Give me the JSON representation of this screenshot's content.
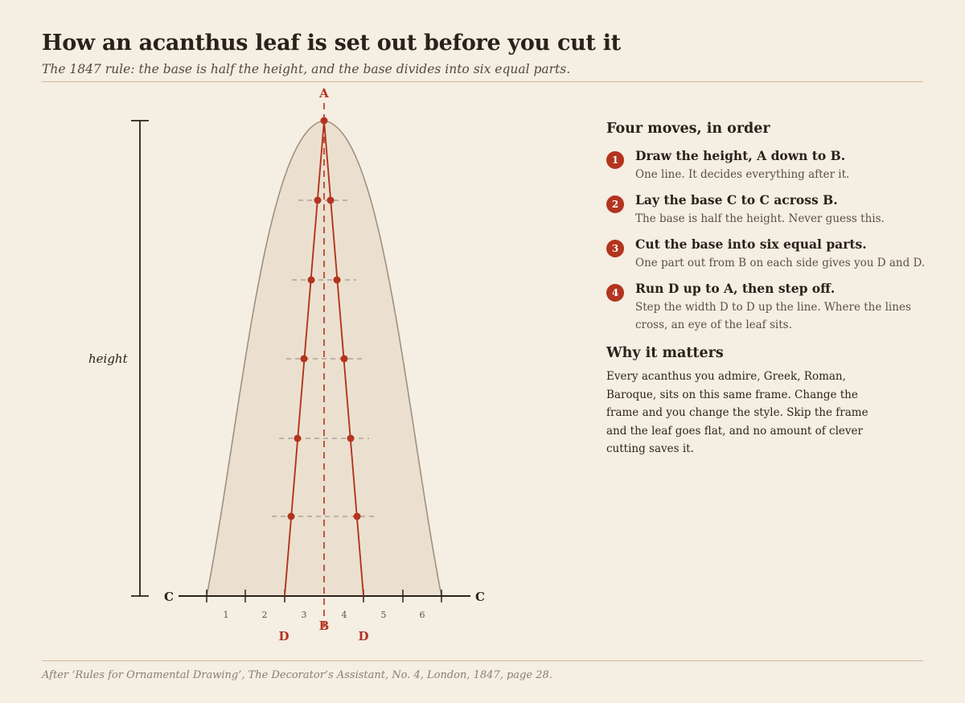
{
  "header": {
    "title": "How an acanthus leaf is set out before you cut it",
    "subtitle": "The 1847 rule: the base is half the height, and the base divides into six equal parts."
  },
  "diagram": {
    "labels": {
      "apex": "A",
      "base_mid": "B",
      "base_end": "C",
      "d_point": "D",
      "height": "height"
    },
    "parts": 6,
    "part_labels": [
      "1",
      "2",
      "3",
      "4",
      "5",
      "6"
    ],
    "step_off_rungs": 5,
    "colors": {
      "accent": "#b3341f",
      "leaf_fill": "#ebe0cf",
      "leaf_stroke": "#9e917f",
      "ink": "#2a211a"
    }
  },
  "steps": {
    "heading": "Four moves, in order",
    "items": [
      {
        "num": "1",
        "head": "Draw the height, A down to B.",
        "body": "One line. It decides everything after it."
      },
      {
        "num": "2",
        "head": "Lay the base C to C across B.",
        "body": "The base is half the height. Never guess this."
      },
      {
        "num": "3",
        "head": "Cut the base into six equal parts.",
        "body": "One part out from B on each side gives you D and D."
      },
      {
        "num": "4",
        "head": "Run D up to A, then step off.",
        "body": "Step the width D to D up the line. Where the lines cross, an eye of the leaf sits."
      }
    ]
  },
  "why": {
    "heading": "Why it matters",
    "body": "Every acanthus you admire, Greek, Roman, Baroque, sits on this same frame. Change the frame and you change the style. Skip the frame and the leaf goes flat, and no amount of clever cutting saves it."
  },
  "footer": {
    "source": "After ‘Rules for Ornamental Drawing’, The Decorator’s Assistant, No. 4, London, 1847, page 28."
  }
}
